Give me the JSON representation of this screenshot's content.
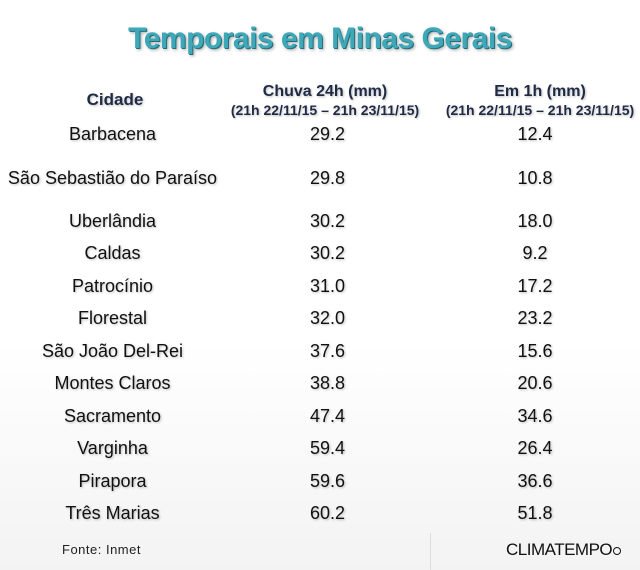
{
  "title": "Temporais em Minas Gerais",
  "headers": {
    "city": "Cidade",
    "rain24h": "Chuva 24h (mm)",
    "rain1h": "Em 1h (mm)",
    "period": "(21h 22/11/15 – 21h 23/11/15)"
  },
  "rows": [
    {
      "city": "Barbacena",
      "rain24h": "29.2",
      "rain1h": "12.4"
    },
    {
      "city": "São Sebastião do Paraíso",
      "rain24h": "29.8",
      "rain1h": "10.8"
    },
    {
      "city": "Uberlândia",
      "rain24h": "30.2",
      "rain1h": "18.0"
    },
    {
      "city": "Caldas",
      "rain24h": "30.2",
      "rain1h": "9.2"
    },
    {
      "city": "Patrocínio",
      "rain24h": "31.0",
      "rain1h": "17.2"
    },
    {
      "city": "Florestal",
      "rain24h": "32.0",
      "rain1h": "23.2"
    },
    {
      "city": "São João Del-Rei",
      "rain24h": "37.6",
      "rain1h": "15.6"
    },
    {
      "city": "Montes Claros",
      "rain24h": "38.8",
      "rain1h": "20.6"
    },
    {
      "city": "Sacramento",
      "rain24h": "47.4",
      "rain1h": "34.6"
    },
    {
      "city": "Varginha",
      "rain24h": "59.4",
      "rain1h": "26.4"
    },
    {
      "city": "Pirapora",
      "rain24h": "59.6",
      "rain1h": "36.6"
    },
    {
      "city": "Três Marias",
      "rain24h": "60.2",
      "rain1h": "51.8"
    }
  ],
  "source": "Fonte: Inmet",
  "brand": "CLIMATEMPO"
}
